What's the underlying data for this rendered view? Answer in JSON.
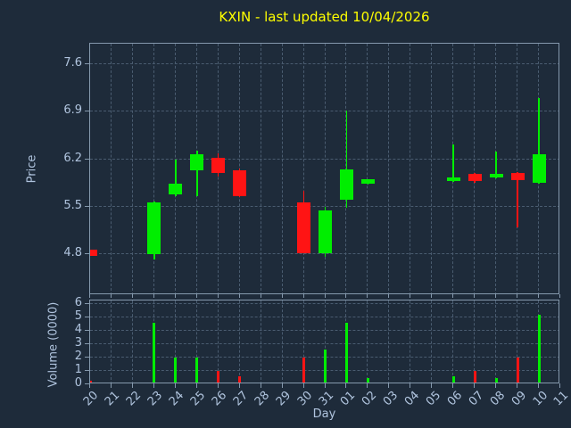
{
  "title": "KXIN - last updated 10/04/2026",
  "chart_data": {
    "type": "candlestick",
    "title": "KXIN - last updated 10/04/2026",
    "x": {
      "label": "Day",
      "tick_labels": [
        "20",
        "21",
        "22",
        "23",
        "24",
        "25",
        "26",
        "27",
        "28",
        "29",
        "30",
        "31",
        "01",
        "02",
        "03",
        "04",
        "05",
        "06",
        "07",
        "08",
        "09",
        "10",
        "11"
      ]
    },
    "price_axis": {
      "label": "Price",
      "ticks": [
        4.8,
        5.5,
        6.2,
        6.9,
        7.6
      ],
      "range": [
        4.2,
        7.9
      ]
    },
    "volume_axis": {
      "label": "Volume (0000)",
      "ticks": [
        0,
        1,
        2,
        3,
        4,
        5,
        6
      ],
      "range": [
        0,
        6.3
      ]
    },
    "candles": [
      {
        "day": "20",
        "open": 4.87,
        "high": 4.87,
        "low": 4.78,
        "close": 4.78
      },
      {
        "day": "23",
        "open": 4.81,
        "high": 5.58,
        "low": 4.72,
        "close": 5.57
      },
      {
        "day": "24",
        "open": 5.68,
        "high": 6.19,
        "low": 5.66,
        "close": 5.84
      },
      {
        "day": "25",
        "open": 6.04,
        "high": 6.32,
        "low": 5.66,
        "close": 6.27
      },
      {
        "day": "26",
        "open": 6.22,
        "high": 6.28,
        "low": 5.94,
        "close": 6.0
      },
      {
        "day": "27",
        "open": 6.04,
        "high": 6.06,
        "low": 5.64,
        "close": 5.66
      },
      {
        "day": "30",
        "open": 5.57,
        "high": 5.73,
        "low": 4.81,
        "close": 4.82
      },
      {
        "day": "31",
        "open": 4.81,
        "high": 5.5,
        "low": 4.76,
        "close": 5.45
      },
      {
        "day": "01",
        "open": 5.6,
        "high": 6.91,
        "low": 5.49,
        "close": 6.05
      },
      {
        "day": "02",
        "open": 5.84,
        "high": 5.91,
        "low": 5.83,
        "close": 5.9
      },
      {
        "day": "06",
        "open": 5.88,
        "high": 6.42,
        "low": 5.87,
        "close": 5.93
      },
      {
        "day": "07",
        "open": 5.99,
        "high": 6.0,
        "low": 5.85,
        "close": 5.88
      },
      {
        "day": "08",
        "open": 5.93,
        "high": 6.31,
        "low": 5.92,
        "close": 5.99
      },
      {
        "day": "09",
        "open": 6.0,
        "high": 6.01,
        "low": 5.2,
        "close": 5.89
      },
      {
        "day": "10",
        "open": 5.85,
        "high": 7.1,
        "low": 5.84,
        "close": 6.27
      }
    ],
    "volume": [
      {
        "day": "20",
        "value": 0.3,
        "direction": "down"
      },
      {
        "day": "23",
        "value": 4.6,
        "direction": "up"
      },
      {
        "day": "24",
        "value": 2.0,
        "direction": "up"
      },
      {
        "day": "25",
        "value": 2.0,
        "direction": "up"
      },
      {
        "day": "26",
        "value": 1.0,
        "direction": "down"
      },
      {
        "day": "27",
        "value": 0.6,
        "direction": "down"
      },
      {
        "day": "30",
        "value": 2.0,
        "direction": "down"
      },
      {
        "day": "31",
        "value": 2.6,
        "direction": "up"
      },
      {
        "day": "01",
        "value": 4.6,
        "direction": "up"
      },
      {
        "day": "02",
        "value": 0.5,
        "direction": "up"
      },
      {
        "day": "06",
        "value": 0.6,
        "direction": "up"
      },
      {
        "day": "07",
        "value": 1.0,
        "direction": "down"
      },
      {
        "day": "08",
        "value": 0.5,
        "direction": "up"
      },
      {
        "day": "09",
        "value": 2.0,
        "direction": "down"
      },
      {
        "day": "10",
        "value": 5.2,
        "direction": "up"
      }
    ],
    "colors": {
      "background": "#1e2b3a",
      "title": "#ffff00",
      "axis_label": "#b0c4de",
      "tick_label": "#b0c4de",
      "grid": "#4a5c70",
      "spine": "#8599ad",
      "up": "#00ee00",
      "down": "#ff1414"
    },
    "legend": null,
    "grid": "dashed, both axes"
  }
}
